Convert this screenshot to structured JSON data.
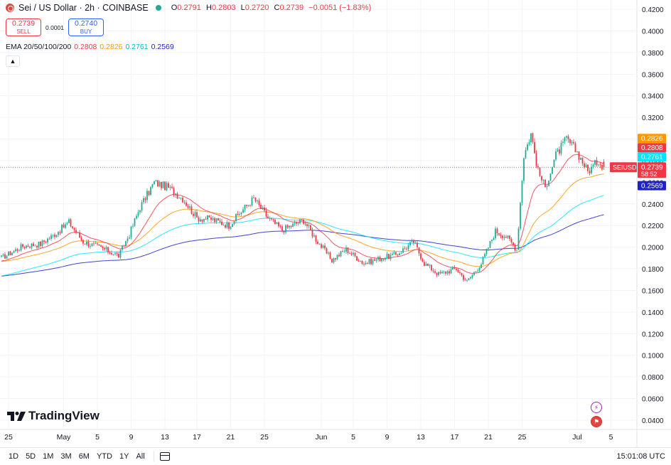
{
  "header": {
    "symbol": "Sei / US Dollar · 2h · COINBASE",
    "ohlc": [
      {
        "k": "O",
        "v": "0.2791"
      },
      {
        "k": "H",
        "v": "0.2803"
      },
      {
        "k": "L",
        "v": "0.2720"
      },
      {
        "k": "C",
        "v": "0.2739"
      }
    ],
    "change": "−0.0051 (−1.83%)",
    "sell_price": "0.2739",
    "sell_label": "SELL",
    "spread": "0.0001",
    "buy_price": "0.2740",
    "buy_label": "BUY",
    "ema_title": "EMA 20/50/100/200",
    "collapse_icon": "chevron-up-icon"
  },
  "colors": {
    "up": "#22ab94",
    "down": "#f23645",
    "ema20": "#f23645",
    "ema50": "#ff9800",
    "ema100": "#00e5ff",
    "ema200": "#1e22c8",
    "price_line": "#f23645"
  },
  "chart_data": {
    "type": "candlestick",
    "title": "Sei / US Dollar · 2h · COINBASE",
    "y_scale": "linear",
    "ylim": [
      0.0314,
      0.4286
    ],
    "y_ticks": [
      "0.0400",
      "0.0600",
      "0.0800",
      "0.1000",
      "0.1200",
      "0.1400",
      "0.1600",
      "0.1800",
      "0.2000",
      "0.2200",
      "0.2400",
      "0.2600",
      "0.2800",
      "0.3000",
      "0.3200",
      "0.3400",
      "0.3600",
      "0.3800",
      "0.4000",
      "0.4200"
    ],
    "x_ticks": [
      "25",
      "May",
      "5",
      "9",
      "13",
      "17",
      "21",
      "25",
      "Jun",
      "5",
      "9",
      "13",
      "17",
      "21",
      "25",
      "Jul",
      "5"
    ],
    "x_tick_index": [
      4,
      35,
      54,
      73,
      92,
      110,
      129,
      148,
      180,
      198,
      217,
      236,
      255,
      274,
      293,
      324,
      343
    ],
    "grid": true,
    "close_path": [
      {
        "i": 0,
        "p": 0.19
      },
      {
        "i": 12,
        "p": 0.201
      },
      {
        "i": 22,
        "p": 0.203
      },
      {
        "i": 30,
        "p": 0.212
      },
      {
        "i": 38,
        "p": 0.223
      },
      {
        "i": 46,
        "p": 0.205
      },
      {
        "i": 58,
        "p": 0.198
      },
      {
        "i": 66,
        "p": 0.192
      },
      {
        "i": 72,
        "p": 0.212
      },
      {
        "i": 78,
        "p": 0.237
      },
      {
        "i": 86,
        "p": 0.26
      },
      {
        "i": 94,
        "p": 0.255
      },
      {
        "i": 102,
        "p": 0.245
      },
      {
        "i": 110,
        "p": 0.227
      },
      {
        "i": 118,
        "p": 0.226
      },
      {
        "i": 128,
        "p": 0.22
      },
      {
        "i": 136,
        "p": 0.235
      },
      {
        "i": 142,
        "p": 0.245
      },
      {
        "i": 150,
        "p": 0.227
      },
      {
        "i": 158,
        "p": 0.216
      },
      {
        "i": 170,
        "p": 0.225
      },
      {
        "i": 178,
        "p": 0.205
      },
      {
        "i": 186,
        "p": 0.188
      },
      {
        "i": 194,
        "p": 0.198
      },
      {
        "i": 204,
        "p": 0.185
      },
      {
        "i": 214,
        "p": 0.19
      },
      {
        "i": 222,
        "p": 0.193
      },
      {
        "i": 232,
        "p": 0.205
      },
      {
        "i": 238,
        "p": 0.185
      },
      {
        "i": 246,
        "p": 0.175
      },
      {
        "i": 256,
        "p": 0.18
      },
      {
        "i": 262,
        "p": 0.168
      },
      {
        "i": 270,
        "p": 0.185
      },
      {
        "i": 278,
        "p": 0.215
      },
      {
        "i": 284,
        "p": 0.21
      },
      {
        "i": 290,
        "p": 0.198
      },
      {
        "i": 294,
        "p": 0.285
      },
      {
        "i": 298,
        "p": 0.305
      },
      {
        "i": 302,
        "p": 0.27
      },
      {
        "i": 306,
        "p": 0.255
      },
      {
        "i": 312,
        "p": 0.285
      },
      {
        "i": 318,
        "p": 0.3
      },
      {
        "i": 324,
        "p": 0.288
      },
      {
        "i": 330,
        "p": 0.27
      },
      {
        "i": 336,
        "p": 0.28
      },
      {
        "i": 339,
        "p": 0.2739
      }
    ],
    "series": [
      {
        "name": "EMA 20",
        "last": "0.2808"
      },
      {
        "name": "EMA 50",
        "last": "0.2826"
      },
      {
        "name": "EMA 100",
        "last": "0.2761"
      },
      {
        "name": "EMA 200",
        "last": "0.2569"
      }
    ],
    "last_price": 0.2739,
    "last_price_label": "0.2739",
    "symbol_tag": "SEIUSD",
    "countdown": "58:52",
    "ema_labels": [
      {
        "value": 0.2826,
        "label": "0.2826",
        "color": "#ff9800"
      },
      {
        "value": 0.2808,
        "label": "0.2808",
        "color": "#f23645"
      },
      {
        "value": 0.2761,
        "label": "0.2761",
        "color": "#00e5ff"
      },
      {
        "value": 0.2569,
        "label": "0.2569",
        "color": "#1e22c8"
      }
    ]
  },
  "footer": {
    "brand": "TradingView",
    "timeframes": [
      "1D",
      "5D",
      "1M",
      "3M",
      "6M",
      "YTD",
      "1Y",
      "All"
    ],
    "time": "15:01:08 UTC",
    "calendar_icon": "calendar-icon",
    "flash_icon": "flash-icon",
    "flag_icon": "us-flag-icon"
  }
}
